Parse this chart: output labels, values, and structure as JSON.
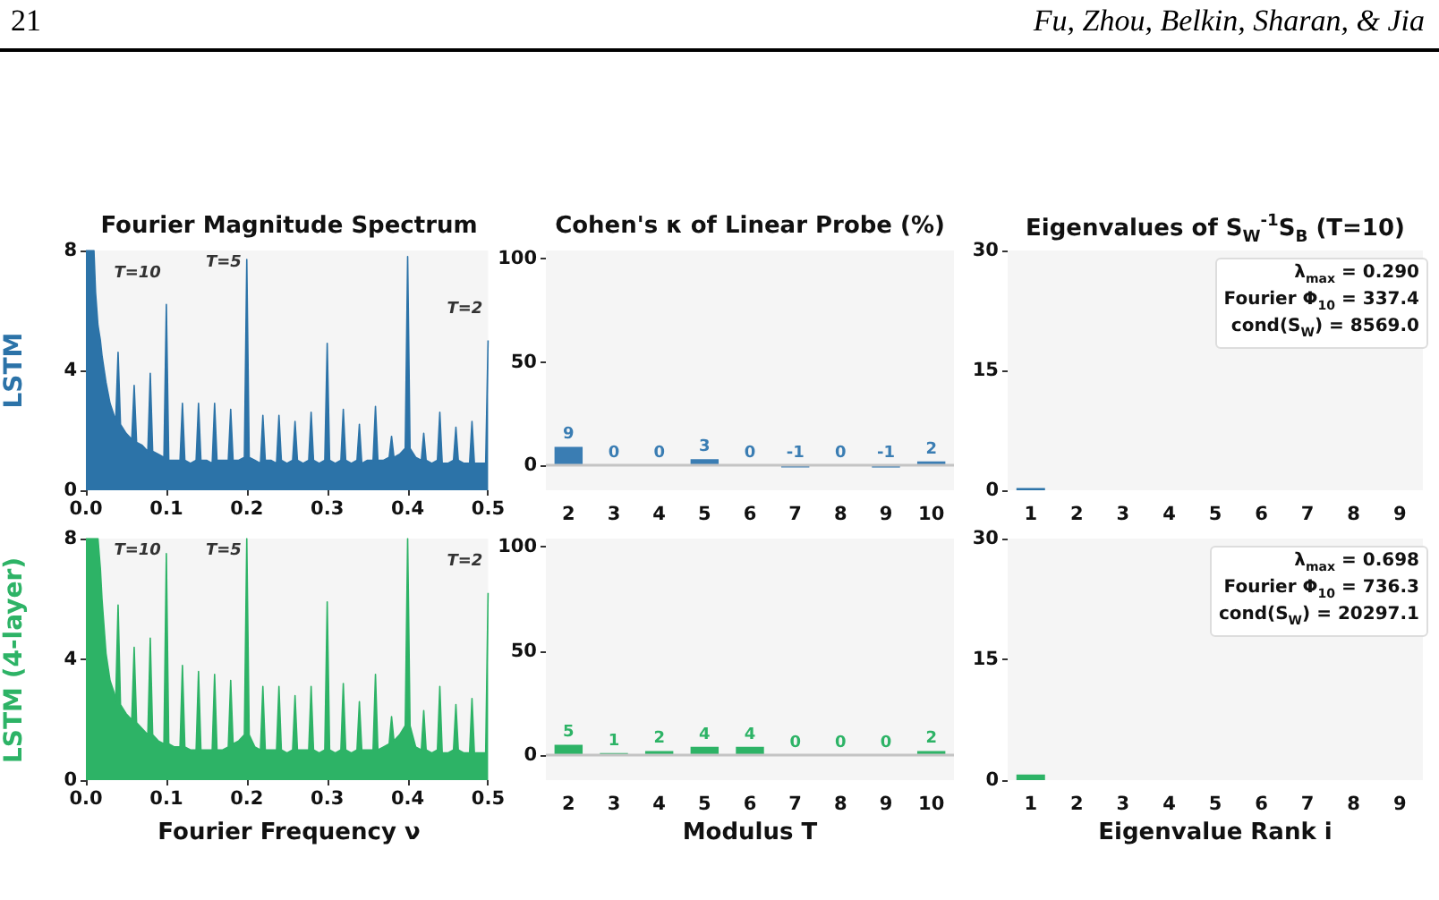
{
  "chart_data": [
    {
      "type": "other",
      "annotations": [
        "21",
        "Fu, Zhou, Belkin, Sharan, & Jia"
      ]
    },
    {
      "type": "area",
      "title": "Fourier Magnitude Spectrum",
      "ylabel": "LSTM",
      "xlim": [
        0,
        0.5
      ],
      "ylim": [
        0,
        8
      ],
      "yticks": [
        0,
        4,
        8
      ],
      "marker": "none",
      "grid": false,
      "xticks": [
        {
          "value": 0,
          "label": "0.0"
        },
        {
          "value": 0.1,
          "label": "0.1"
        },
        {
          "value": 0.2,
          "label": "0.2"
        },
        {
          "value": 0.3,
          "label": "0.3"
        },
        {
          "value": 0.4,
          "label": "0.4"
        },
        {
          "value": 0.5,
          "label": "0.5"
        }
      ],
      "annotations": [
        {
          "text": "T=10",
          "x": 0.1,
          "y": 6.2
        },
        {
          "text": "T=5",
          "x": 0.2,
          "y": 7.7
        },
        {
          "text": "T=2",
          "x": 0.5,
          "y": 5.0
        }
      ],
      "series": [
        {
          "color": "#2c73a8",
          "x": [
            0,
            0.005,
            0.01,
            0.012,
            0.015,
            0.018,
            0.02,
            0.025,
            0.03,
            0.035,
            0.037,
            0.04,
            0.043,
            0.05,
            0.057,
            0.06,
            0.063,
            0.07,
            0.077,
            0.08,
            0.083,
            0.09,
            0.097,
            0.1,
            0.103,
            0.11,
            0.117,
            0.12,
            0.123,
            0.13,
            0.137,
            0.14,
            0.143,
            0.15,
            0.157,
            0.16,
            0.163,
            0.17,
            0.177,
            0.18,
            0.183,
            0.19,
            0.197,
            0.2,
            0.203,
            0.21,
            0.217,
            0.22,
            0.223,
            0.23,
            0.237,
            0.24,
            0.243,
            0.25,
            0.257,
            0.26,
            0.263,
            0.27,
            0.277,
            0.28,
            0.283,
            0.29,
            0.297,
            0.3,
            0.303,
            0.31,
            0.317,
            0.32,
            0.323,
            0.33,
            0.337,
            0.34,
            0.343,
            0.35,
            0.357,
            0.36,
            0.363,
            0.37,
            0.377,
            0.38,
            0.383,
            0.39,
            0.397,
            0.4,
            0.403,
            0.41,
            0.417,
            0.42,
            0.423,
            0.43,
            0.437,
            0.44,
            0.443,
            0.45,
            0.457,
            0.46,
            0.463,
            0.47,
            0.477,
            0.48,
            0.483,
            0.49,
            0.497,
            0.5
          ],
          "values": [
            8,
            8,
            8,
            6.6,
            5.5,
            5.0,
            4.5,
            3.6,
            2.9,
            2.5,
            2.3,
            4.6,
            2.2,
            1.9,
            1.7,
            3.5,
            1.6,
            1.5,
            1.3,
            3.9,
            1.3,
            1.2,
            1.1,
            6.2,
            1.0,
            1.0,
            1.0,
            2.9,
            1.0,
            0.9,
            1.0,
            2.9,
            1.0,
            1.0,
            0.9,
            2.9,
            1.0,
            1.0,
            1.0,
            2.7,
            1.0,
            1.0,
            1.1,
            7.7,
            1.1,
            1.0,
            0.9,
            2.5,
            1.0,
            1.0,
            0.9,
            2.5,
            1.0,
            0.9,
            1.0,
            2.3,
            1.0,
            0.9,
            1.0,
            2.6,
            1.0,
            0.9,
            1.0,
            4.9,
            1.0,
            0.9,
            1.0,
            2.7,
            1.0,
            0.9,
            1.0,
            2.2,
            0.9,
            1.0,
            1.0,
            2.8,
            1.0,
            1.0,
            1.1,
            1.8,
            1.1,
            1.2,
            1.4,
            7.8,
            1.4,
            1.1,
            1.0,
            1.9,
            1.0,
            0.9,
            1.0,
            2.6,
            0.9,
            0.9,
            1.0,
            2.1,
            1.0,
            0.9,
            0.9,
            2.3,
            0.9,
            0.9,
            0.9,
            5.0
          ]
        }
      ]
    },
    {
      "type": "bar",
      "title": "Cohen's κ of Linear Probe (%)",
      "categories": [
        "2",
        "3",
        "4",
        "5",
        "6",
        "7",
        "8",
        "9",
        "10"
      ],
      "values": [
        9,
        0,
        0,
        3,
        0,
        -1,
        0,
        -1,
        2
      ],
      "color": "#3a7db3",
      "ylim": [
        -12,
        104
      ],
      "yticks": [
        0,
        50,
        100
      ],
      "data_labels": true,
      "grid": false,
      "ref_lines": [
        {
          "axis": "y",
          "value": 0,
          "color": "#c4c4c4"
        }
      ]
    },
    {
      "type": "bar",
      "title": "Eigenvalues of S$_{W}$$^{-1}$S$_{B}$  (T=10)",
      "categories": [
        "1",
        "2",
        "3",
        "4",
        "5",
        "6",
        "7",
        "8",
        "9"
      ],
      "values": [
        0.29,
        0,
        0,
        0,
        0,
        0,
        0,
        0,
        0
      ],
      "color": "#2c73a8",
      "ylim": [
        0,
        30
      ],
      "yticks": [
        0,
        15,
        30
      ],
      "grid": false,
      "annotations": [
        "λ$_{max}$ = 0.290",
        "Fourier Φ$_{10}$ = 337.4",
        "cond(S$_{W}$) = 8569.0"
      ]
    },
    {
      "type": "area",
      "ylabel": "LSTM (4-layer)",
      "xlabel": "Fourier Frequency ν",
      "xlim": [
        0,
        0.5
      ],
      "ylim": [
        0,
        8
      ],
      "yticks": [
        0,
        4,
        8
      ],
      "marker": "none",
      "grid": false,
      "xticks": [
        {
          "value": 0,
          "label": "0.0"
        },
        {
          "value": 0.1,
          "label": "0.1"
        },
        {
          "value": 0.2,
          "label": "0.2"
        },
        {
          "value": 0.3,
          "label": "0.3"
        },
        {
          "value": 0.4,
          "label": "0.4"
        },
        {
          "value": 0.5,
          "label": "0.5"
        }
      ],
      "annotations": [
        {
          "text": "T=10",
          "x": 0.1,
          "y": 7.5
        },
        {
          "text": "T=5",
          "x": 0.2,
          "y": 8
        },
        {
          "text": "T=2",
          "x": 0.5,
          "y": 6.2
        }
      ],
      "series": [
        {
          "color": "#2db366",
          "x": [
            0,
            0.005,
            0.01,
            0.012,
            0.015,
            0.018,
            0.02,
            0.025,
            0.03,
            0.035,
            0.037,
            0.04,
            0.043,
            0.05,
            0.057,
            0.06,
            0.063,
            0.07,
            0.077,
            0.08,
            0.083,
            0.09,
            0.097,
            0.1,
            0.103,
            0.11,
            0.117,
            0.12,
            0.123,
            0.13,
            0.137,
            0.14,
            0.143,
            0.15,
            0.157,
            0.16,
            0.163,
            0.17,
            0.177,
            0.18,
            0.183,
            0.19,
            0.197,
            0.2,
            0.203,
            0.21,
            0.217,
            0.22,
            0.223,
            0.23,
            0.237,
            0.24,
            0.243,
            0.25,
            0.257,
            0.26,
            0.263,
            0.27,
            0.277,
            0.28,
            0.283,
            0.29,
            0.297,
            0.3,
            0.303,
            0.31,
            0.317,
            0.32,
            0.323,
            0.33,
            0.337,
            0.34,
            0.343,
            0.35,
            0.357,
            0.36,
            0.363,
            0.37,
            0.377,
            0.38,
            0.383,
            0.39,
            0.397,
            0.4,
            0.403,
            0.41,
            0.417,
            0.42,
            0.423,
            0.43,
            0.437,
            0.44,
            0.443,
            0.45,
            0.457,
            0.46,
            0.463,
            0.47,
            0.477,
            0.48,
            0.483,
            0.49,
            0.497,
            0.5
          ],
          "values": [
            8,
            8,
            8,
            8,
            8,
            7.0,
            6.0,
            4.2,
            3.3,
            2.9,
            2.6,
            5.8,
            2.5,
            2.2,
            2.0,
            4.4,
            1.9,
            1.7,
            1.5,
            4.7,
            1.5,
            1.3,
            1.2,
            7.5,
            1.2,
            1.1,
            1.1,
            3.8,
            1.1,
            1.0,
            1.0,
            3.6,
            1.0,
            1.0,
            1.0,
            3.5,
            1.0,
            1.0,
            1.1,
            3.3,
            1.2,
            1.3,
            1.5,
            8,
            1.5,
            1.1,
            1.0,
            3.1,
            1.0,
            1.0,
            1.0,
            3.1,
            1.0,
            0.9,
            1.0,
            2.8,
            1.0,
            1.0,
            1.0,
            3.1,
            1.0,
            0.9,
            1.0,
            5.9,
            1.0,
            0.9,
            1.0,
            3.2,
            1.0,
            0.9,
            1.0,
            2.6,
            1.0,
            1.0,
            1.0,
            3.5,
            1.0,
            1.1,
            1.2,
            2.1,
            1.3,
            1.5,
            1.8,
            8,
            1.8,
            1.1,
            1.0,
            2.3,
            1.0,
            0.9,
            1.0,
            3.1,
            0.9,
            0.9,
            1.0,
            2.5,
            1.0,
            0.9,
            0.9,
            2.7,
            0.9,
            0.9,
            0.9,
            6.2
          ]
        }
      ]
    },
    {
      "type": "bar",
      "xlabel": "Modulus T",
      "categories": [
        "2",
        "3",
        "4",
        "5",
        "6",
        "7",
        "8",
        "9",
        "10"
      ],
      "values": [
        5,
        1,
        2,
        4,
        4,
        0,
        0,
        0,
        2
      ],
      "color": "#2db366",
      "ylim": [
        -12,
        104
      ],
      "yticks": [
        0,
        50,
        100
      ],
      "data_labels": true,
      "grid": false,
      "ref_lines": [
        {
          "axis": "y",
          "value": 0,
          "color": "#c4c4c4"
        }
      ]
    },
    {
      "type": "bar",
      "xlabel": "Eigenvalue Rank i",
      "categories": [
        "1",
        "2",
        "3",
        "4",
        "5",
        "6",
        "7",
        "8",
        "9"
      ],
      "values": [
        0.698,
        0,
        0,
        0,
        0,
        0,
        0,
        0,
        0
      ],
      "color": "#2db366",
      "ylim": [
        0,
        30
      ],
      "yticks": [
        0,
        15,
        30
      ],
      "grid": false,
      "annotations": [
        "λ$_{max}$ = 0.698",
        "Fourier Φ$_{10}$ = 736.3",
        "cond(S$_{W}$) = 20297.1"
      ]
    }
  ]
}
